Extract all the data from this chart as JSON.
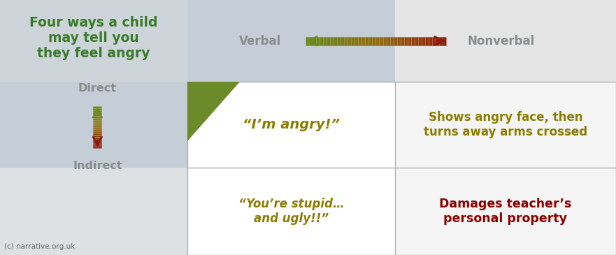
{
  "title_text": "Four ways a child\nmay tell you\nthey feel angry",
  "title_color": "#3a7a2a",
  "verbal_label": "Verbal",
  "nonverbal_label": "Nonverbal",
  "direct_label": "Direct",
  "indirect_label": "Indirect",
  "label_color_gray": "#888e8e",
  "cell1_text": "“I’m angry!”",
  "cell1_color": "#8b7d00",
  "cell2_text": "Shows angry face, then\nturns away arms crossed",
  "cell2_color": "#8b7d00",
  "cell3_text": "“You’re stupid…\nand ugly!!”",
  "cell3_color": "#8b7d00",
  "cell4_text": "Damages teacher’s\npersonal property",
  "cell4_color": "#8b0000",
  "copyright_text": "(c) narrative.org.uk",
  "bg_color": "#eaeef0",
  "title_bg": "#cdd5da",
  "verbal_bg": "#c5ced6",
  "nonverbal_bg": "#e5e5e5",
  "direct_bg": "#c5ced6",
  "indirect_bg": "#dde1e4",
  "cell_white": "#ffffff",
  "cell_offwhite": "#f5f5f5",
  "border_color": "#b0b0b0",
  "tri_color": "#6b8a2a",
  "col0": 0,
  "col1": 268,
  "col2": 565,
  "col3": 881,
  "row0": 365,
  "row1": 248,
  "row2": 125,
  "row3": 0
}
